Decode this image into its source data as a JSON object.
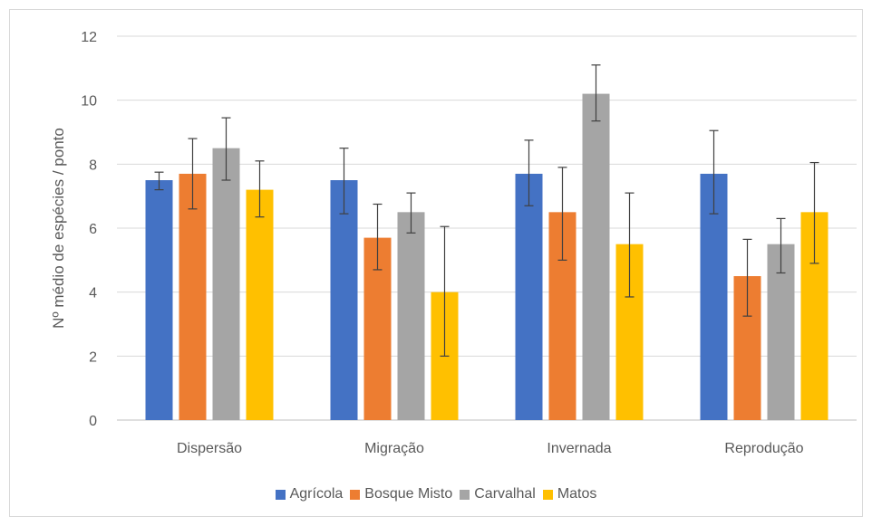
{
  "chart_data": {
    "type": "bar",
    "categories": [
      "Dispersão",
      "Migração",
      "Invernada",
      "Reprodução"
    ],
    "ylabel": "Nº médio de espécies / ponto",
    "xlabel": "",
    "ylim": [
      0,
      12
    ],
    "yticks": [
      0,
      2,
      4,
      6,
      8,
      10,
      12
    ],
    "grid": true,
    "legend_position": "bottom",
    "series": [
      {
        "name": "Agrícola",
        "color": "#4472C4",
        "values": [
          7.5,
          7.5,
          7.7,
          7.7
        ],
        "error_low": [
          7.2,
          6.45,
          6.7,
          6.45
        ],
        "error_high": [
          7.75,
          8.5,
          8.75,
          9.05
        ]
      },
      {
        "name": "Bosque Misto",
        "color": "#ED7D31",
        "values": [
          7.7,
          5.7,
          6.5,
          4.5
        ],
        "error_low": [
          6.6,
          4.7,
          5.0,
          3.25
        ],
        "error_high": [
          8.8,
          6.75,
          7.9,
          5.65
        ]
      },
      {
        "name": "Carvalhal",
        "color": "#A5A5A5",
        "values": [
          8.5,
          6.5,
          10.2,
          5.5
        ],
        "error_low": [
          7.5,
          5.85,
          9.35,
          4.6
        ],
        "error_high": [
          9.45,
          7.1,
          11.1,
          6.3
        ]
      },
      {
        "name": "Matos",
        "color": "#FFC000",
        "values": [
          7.2,
          4.0,
          5.5,
          6.5
        ],
        "error_low": [
          6.35,
          2.0,
          3.85,
          4.9
        ],
        "error_high": [
          8.1,
          6.05,
          7.1,
          8.05
        ]
      }
    ]
  }
}
